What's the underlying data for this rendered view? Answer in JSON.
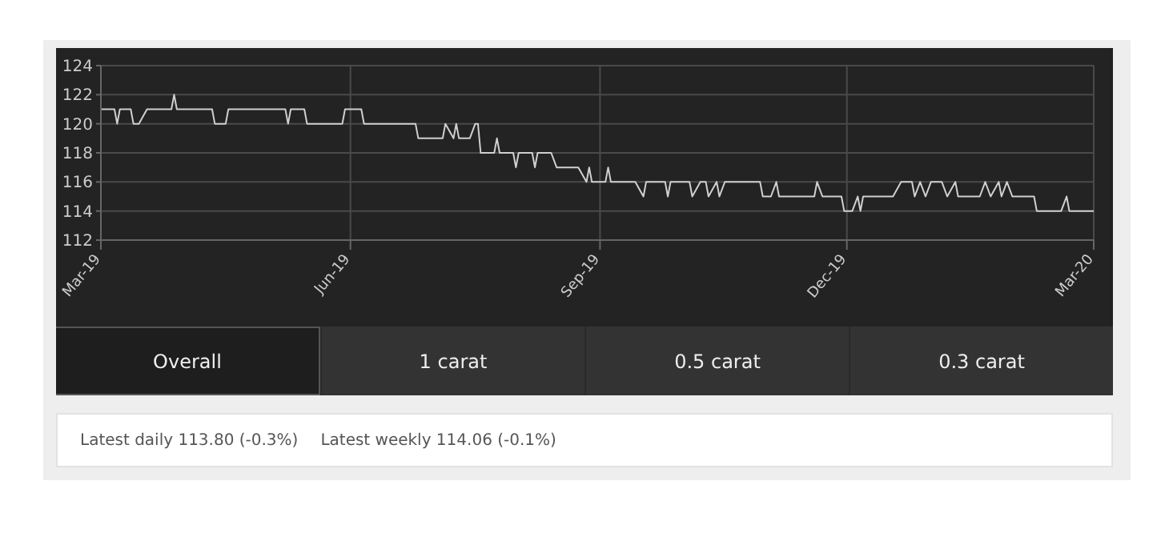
{
  "chart_data": {
    "type": "line",
    "x": [
      "2019-03-01",
      "2019-03-06",
      "2019-03-07",
      "2019-03-08",
      "2019-03-12",
      "2019-03-13",
      "2019-03-15",
      "2019-03-18",
      "2019-03-27",
      "2019-03-28",
      "2019-03-29",
      "2019-04-11",
      "2019-04-12",
      "2019-04-16",
      "2019-04-17",
      "2019-05-08",
      "2019-05-09",
      "2019-05-10",
      "2019-05-15",
      "2019-05-16",
      "2019-05-29",
      "2019-05-30",
      "2019-06-05",
      "2019-06-06",
      "2019-06-25",
      "2019-06-26",
      "2019-07-05",
      "2019-07-06",
      "2019-07-09",
      "2019-07-10",
      "2019-07-11",
      "2019-07-15",
      "2019-07-17",
      "2019-07-18",
      "2019-07-19",
      "2019-07-24",
      "2019-07-25",
      "2019-07-26",
      "2019-07-31",
      "2019-08-01",
      "2019-08-02",
      "2019-08-07",
      "2019-08-08",
      "2019-08-09",
      "2019-08-14",
      "2019-08-16",
      "2019-08-24",
      "2019-08-27",
      "2019-08-28",
      "2019-08-29",
      "2019-09-03",
      "2019-09-04",
      "2019-09-05",
      "2019-09-14",
      "2019-09-17",
      "2019-09-18",
      "2019-09-25",
      "2019-09-26",
      "2019-09-27",
      "2019-10-04",
      "2019-10-05",
      "2019-10-08",
      "2019-10-10",
      "2019-10-11",
      "2019-10-14",
      "2019-10-15",
      "2019-10-17",
      "2019-10-30",
      "2019-10-31",
      "2019-11-03",
      "2019-11-05",
      "2019-11-06",
      "2019-11-19",
      "2019-11-20",
      "2019-11-22",
      "2019-11-29",
      "2019-11-30",
      "2019-12-03",
      "2019-12-05",
      "2019-12-06",
      "2019-12-07",
      "2019-12-18",
      "2019-12-21",
      "2019-12-25",
      "2019-12-26",
      "2019-12-28",
      "2019-12-30",
      "2020-01-01",
      "2020-01-05",
      "2020-01-07",
      "2020-01-10",
      "2020-01-11",
      "2020-01-19",
      "2020-01-21",
      "2020-01-23",
      "2020-01-26",
      "2020-01-27",
      "2020-01-29",
      "2020-01-31",
      "2020-02-08",
      "2020-02-09",
      "2020-02-18",
      "2020-02-20",
      "2020-02-21",
      "2020-03-01"
    ],
    "series": [
      {
        "color": "#d0d0d0",
        "values": [
          121,
          121,
          120,
          121,
          121,
          120,
          120,
          121,
          121,
          122,
          121,
          121,
          120,
          120,
          121,
          121,
          120,
          121,
          121,
          120,
          120,
          121,
          121,
          120,
          120,
          119,
          119,
          120,
          119,
          120,
          119,
          119,
          120,
          120,
          118,
          118,
          119,
          118,
          118,
          117,
          118,
          118,
          117,
          118,
          118,
          117,
          117,
          116,
          117,
          116,
          116,
          117,
          116,
          116,
          115,
          116,
          116,
          115,
          116,
          116,
          115,
          116,
          116,
          115,
          116,
          115,
          116,
          116,
          115,
          115,
          116,
          115,
          115,
          116,
          115,
          115,
          114,
          114,
          115,
          114,
          115,
          115,
          116,
          116,
          115,
          116,
          115,
          116,
          116,
          115,
          116,
          115,
          115,
          116,
          115,
          116,
          115,
          116,
          115,
          115,
          114,
          114,
          115,
          114,
          114
        ]
      }
    ],
    "xlim": [
      "2019-03-01",
      "2020-03-01"
    ],
    "xticks": [
      {
        "value": "2019-03-01",
        "label": "Mar-19"
      },
      {
        "value": "2019-06-01",
        "label": "Jun-19"
      },
      {
        "value": "2019-09-01",
        "label": "Sep-19"
      },
      {
        "value": "2019-12-01",
        "label": "Dec-19"
      },
      {
        "value": "2020-03-01",
        "label": "Mar-20"
      }
    ],
    "ylim": [
      112,
      124
    ],
    "yticks": [
      112,
      114,
      116,
      118,
      120,
      122,
      124
    ],
    "grid": true,
    "legend": false,
    "marker": "none",
    "line_style": "solid",
    "annotations": [
      "Overall",
      "1 carat",
      "0.5 carat",
      "0.3 carat",
      "Latest daily 113.80 (-0.3%)",
      "Latest weekly 114.06 (-0.1%)"
    ]
  }
}
